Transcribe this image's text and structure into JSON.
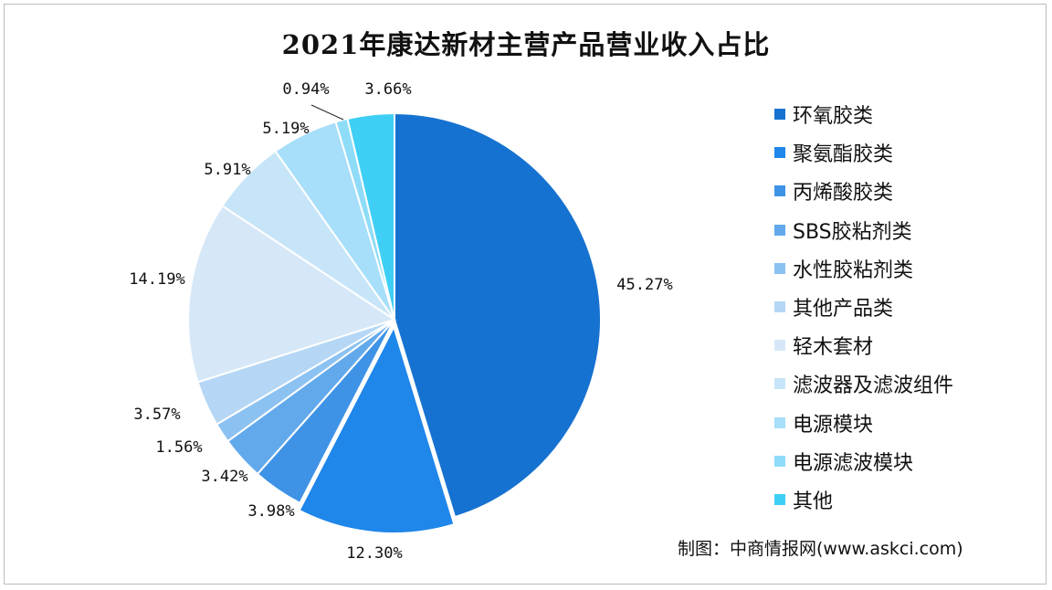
{
  "chart_data": {
    "type": "pie",
    "title": "2021年康达新材主营产品营业收入占比",
    "categories": [
      "环氧胶类",
      "聚氨酯胶类",
      "丙烯酸胶类",
      "SBS胶粘剂类",
      "水性胶粘剂类",
      "其他产品类",
      "轻木套材",
      "滤波器及滤波组件",
      "电源模块",
      "电源滤波模块",
      "其他"
    ],
    "values": [
      45.27,
      12.3,
      3.98,
      3.42,
      1.56,
      3.57,
      14.19,
      5.91,
      5.19,
      0.94,
      3.66
    ],
    "labels": [
      "45.27%",
      "12.30%",
      "3.98%",
      "3.42%",
      "1.56%",
      "3.57%",
      "14.19%",
      "5.91%",
      "5.19%",
      "0.94%",
      "3.66%"
    ],
    "colors": [
      "#1672d0",
      "#1f86ea",
      "#3f93e6",
      "#62a9ec",
      "#8cc2f1",
      "#b5d7f5",
      "#d6e8f8",
      "#c7e5f8",
      "#a7def9",
      "#8fdcf9",
      "#3fcff5"
    ],
    "legend_position": "right"
  },
  "source": "制图：中商情报网(www.askci.com)"
}
